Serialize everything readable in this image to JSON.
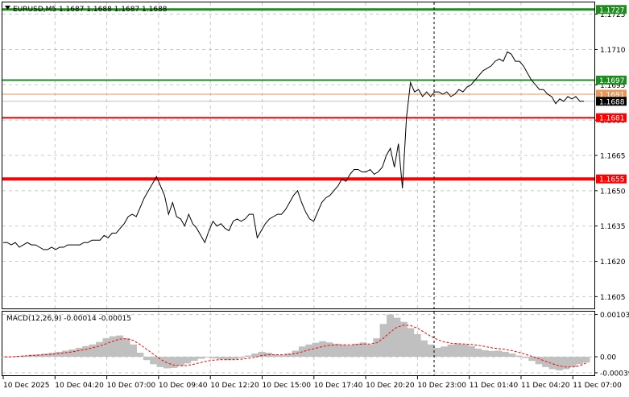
{
  "header": {
    "symbol_line": "EURUSD,M5  1.1687 1.1688 1.1687 1.1688"
  },
  "colors": {
    "background": "#ffffff",
    "grid": "#c8c8c8",
    "price_line": "#000000",
    "resistance_green": "#1e8c1e",
    "support_red": "#ff0000",
    "bid_line": "#c0c0c0",
    "ask_line": "#e8965a",
    "macd_hist": "#c0c0c0",
    "macd_signal": "#ff0000"
  },
  "chart_data": [
    {
      "type": "line",
      "title": "EURUSD,M5",
      "x_labels": [
        "10 Dec 2025",
        "10 Dec 04:20",
        "10 Dec 07:00",
        "10 Dec 09:40",
        "10 Dec 12:20",
        "10 Dec 15:00",
        "10 Dec 17:40",
        "10 Dec 20:20",
        "10 Dec 23:00",
        "11 Dec 01:40",
        "11 Dec 04:20",
        "11 Dec 07:00"
      ],
      "y_ticks": [
        "1.1725",
        "1.1710",
        "1.1695",
        "1.1680",
        "1.1665",
        "1.1650",
        "1.1635",
        "1.1620",
        "1.1605"
      ],
      "ylim": [
        1.16,
        1.173
      ],
      "series": [
        {
          "values": [
            1.1628,
            1.1628,
            1.1627,
            1.1628,
            1.1626,
            1.1627,
            1.1628,
            1.1627,
            1.1627,
            1.1626,
            1.1625,
            1.1625,
            1.1626,
            1.1625,
            1.1626,
            1.1626,
            1.1627,
            1.1627,
            1.1627,
            1.1627,
            1.1628,
            1.1628,
            1.1629,
            1.1629,
            1.1629,
            1.1631,
            1.163,
            1.1632,
            1.1632,
            1.1634,
            1.1636,
            1.1639,
            1.164,
            1.1639,
            1.1643,
            1.1647,
            1.165,
            1.1653,
            1.1656,
            1.1652,
            1.1648,
            1.164,
            1.1645,
            1.1639,
            1.1638,
            1.1635,
            1.164,
            1.1636,
            1.1634,
            1.1631,
            1.1628,
            1.1633,
            1.1637,
            1.1635,
            1.1636,
            1.1634,
            1.1633,
            1.1637,
            1.1638,
            1.1637,
            1.1638,
            1.164,
            1.164,
            1.163,
            1.1633,
            1.1636,
            1.1638,
            1.1639,
            1.164,
            1.164,
            1.1642,
            1.1645,
            1.1648,
            1.165,
            1.1645,
            1.1641,
            1.1638,
            1.1637,
            1.1641,
            1.1645,
            1.1647,
            1.1648,
            1.165,
            1.1652,
            1.1655,
            1.1654,
            1.1657,
            1.1659,
            1.1659,
            1.1658,
            1.1658,
            1.1659,
            1.1657,
            1.1658,
            1.166,
            1.1665,
            1.1668,
            1.166,
            1.167,
            1.1651,
            1.1681,
            1.1696,
            1.1692,
            1.1693,
            1.169,
            1.1692,
            1.169,
            1.1692,
            1.1692,
            1.1691,
            1.1692,
            1.169,
            1.1691,
            1.1693,
            1.1692,
            1.1694,
            1.1695,
            1.1697,
            1.1699,
            1.1701,
            1.1702,
            1.1703,
            1.1705,
            1.1706,
            1.1705,
            1.1709,
            1.1708,
            1.1705,
            1.1705,
            1.1703,
            1.17,
            1.1697,
            1.1695,
            1.1693,
            1.1693,
            1.1691,
            1.169,
            1.1687,
            1.1689,
            1.1688,
            1.169,
            1.1689,
            1.169,
            1.1688,
            1.1688
          ]
        }
      ],
      "levels": [
        {
          "name": "resistance-upper",
          "value": 1.1727,
          "label": "1.1727",
          "color": "#1e8c1e"
        },
        {
          "name": "resistance-lower",
          "value": 1.1697,
          "label": "1.1697",
          "color": "#1e8c1e"
        },
        {
          "name": "ask-line",
          "value": 1.1691,
          "label": "1.1691",
          "color": "#e8965a"
        },
        {
          "name": "bid-line",
          "value": 1.1688,
          "label": "1.1688",
          "color": "#000000"
        },
        {
          "name": "support-upper",
          "value": 1.1681,
          "label": "1.1681",
          "color": "#ff0000"
        },
        {
          "name": "support-lower",
          "value": 1.1655,
          "label": "1.1655",
          "color": "#ff0000"
        }
      ],
      "grid": true
    },
    {
      "type": "bar",
      "title": "MACD(12,26,9) -0.00014 -0.00015",
      "y_ticks": [
        "0.00103",
        "0.00",
        "-0.00039"
      ],
      "ylim": [
        -0.00045,
        0.0011
      ],
      "histogram": [
        0.0,
        1e-05,
        2e-05,
        3e-05,
        5e-05,
        6e-05,
        8e-05,
        0.0001,
        0.00012,
        0.00015,
        0.00018,
        0.00022,
        0.00026,
        0.0003,
        0.00036,
        0.00045,
        0.0005,
        0.00052,
        0.00045,
        0.0003,
        0.0001,
        -8e-05,
        -0.00018,
        -0.00025,
        -0.00028,
        -0.00027,
        -0.00022,
        -0.00016,
        -0.0001,
        -5e-05,
        -2e-05,
        -4e-05,
        -6e-05,
        -8e-05,
        -6e-05,
        -3e-05,
        3e-05,
        8e-05,
        0.00012,
        0.0001,
        6e-05,
        4e-05,
        8e-05,
        0.00015,
        0.00025,
        0.0003,
        0.00034,
        0.00038,
        0.00035,
        0.00032,
        0.0003,
        0.00028,
        0.00032,
        0.00035,
        0.0003,
        0.00045,
        0.0008,
        0.00103,
        0.00095,
        0.00085,
        0.0007,
        0.00055,
        0.0004,
        0.0003,
        0.00022,
        0.00025,
        0.0003,
        0.00032,
        0.0003,
        0.00026,
        0.0002,
        0.00016,
        0.00014,
        0.00015,
        0.00012,
        8e-05,
        3e-05,
        -3e-05,
        -0.0001,
        -0.00018,
        -0.00025,
        -0.0003,
        -0.00033,
        -0.0003,
        -0.00025,
        -0.00018,
        -0.00014
      ],
      "signal": [
        0.0,
        0.0,
        1e-05,
        2e-05,
        3e-05,
        4e-05,
        5e-05,
        6e-05,
        8e-05,
        0.0001,
        0.00012,
        0.00015,
        0.00018,
        0.00022,
        0.00026,
        0.00032,
        0.00038,
        0.00043,
        0.00044,
        0.0004,
        0.0003,
        0.00018,
        6e-05,
        -6e-05,
        -0.00015,
        -0.0002,
        -0.00022,
        -0.00021,
        -0.00018,
        -0.00014,
        -0.0001,
        -8e-05,
        -7e-05,
        -7e-05,
        -7e-05,
        -6e-05,
        -4e-05,
        -1e-05,
        3e-05,
        5e-05,
        5e-05,
        5e-05,
        6e-05,
        8e-05,
        0.00012,
        0.00017,
        0.00021,
        0.00025,
        0.00028,
        0.00029,
        0.00029,
        0.00029,
        0.0003,
        0.00031,
        0.00031,
        0.00034,
        0.00045,
        0.0006,
        0.00072,
        0.00077,
        0.00076,
        0.0007,
        0.0006,
        0.0005,
        0.00042,
        0.00036,
        0.00033,
        0.00032,
        0.00031,
        0.0003,
        0.00028,
        0.00025,
        0.00022,
        0.0002,
        0.00018,
        0.00015,
        0.00011,
        6e-05,
        1e-05,
        -5e-05,
        -0.00011,
        -0.00017,
        -0.00022,
        -0.00025,
        -0.00025,
        -0.00022,
        -0.00015
      ],
      "grid": true
    }
  ]
}
